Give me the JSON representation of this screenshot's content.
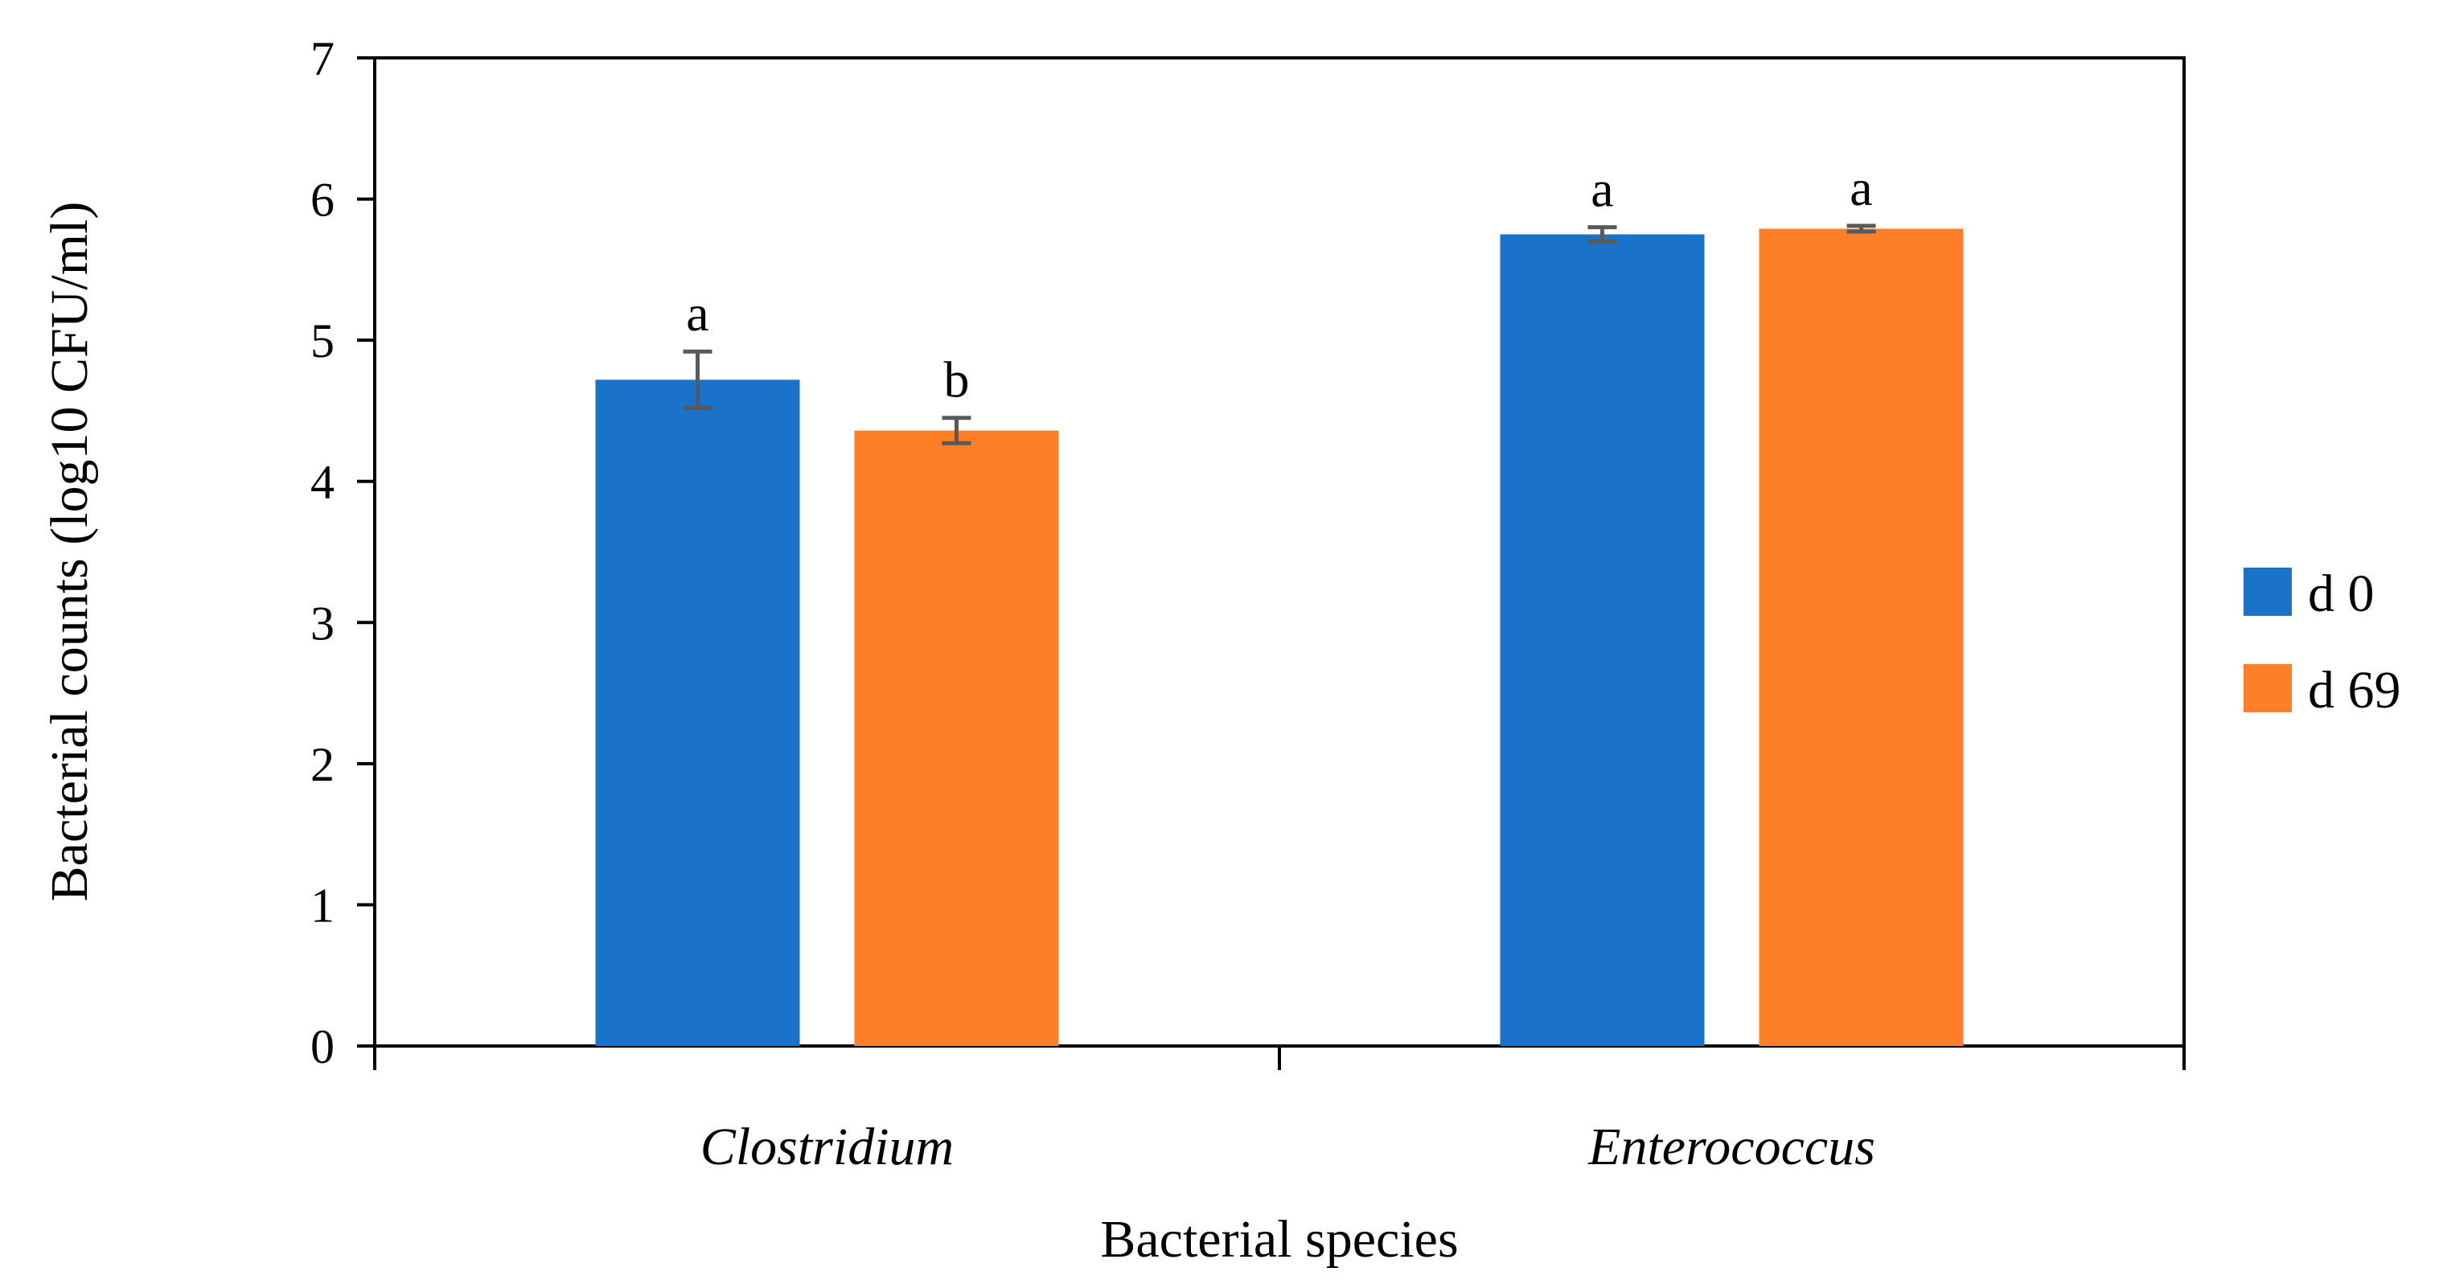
{
  "chart_data": {
    "type": "bar",
    "title": "",
    "xlabel": "Bacterial species",
    "ylabel": "Bacterial counts (log10 CFU/ml)",
    "ylim": [
      0,
      7
    ],
    "yticks": [
      "0",
      "1",
      "2",
      "3",
      "4",
      "5",
      "6",
      "7"
    ],
    "grid": false,
    "legend_position": "right",
    "categories": [
      "Clostridium",
      "Enterococcus"
    ],
    "series": [
      {
        "name": "d 0",
        "color": "#1a73c8",
        "values": [
          4.72,
          5.75
        ],
        "errors": [
          0.2,
          0.05
        ],
        "letters": [
          "a",
          "a"
        ]
      },
      {
        "name": "d 69",
        "color": "#ff7f27",
        "values": [
          4.36,
          5.79
        ],
        "errors": [
          0.09,
          0.02
        ],
        "letters": [
          "b",
          "a"
        ]
      }
    ]
  }
}
